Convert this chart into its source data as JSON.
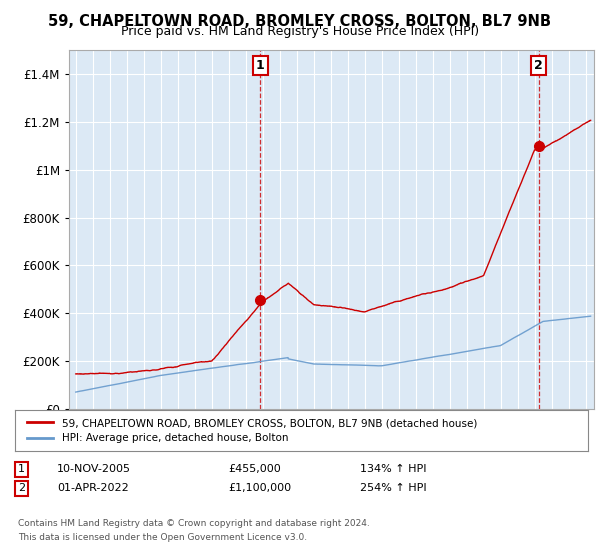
{
  "title": "59, CHAPELTOWN ROAD, BROMLEY CROSS, BOLTON, BL7 9NB",
  "subtitle": "Price paid vs. HM Land Registry's House Price Index (HPI)",
  "title_fontsize": 10.5,
  "subtitle_fontsize": 9,
  "ylabel_ticks": [
    "£0",
    "£200K",
    "£400K",
    "£600K",
    "£800K",
    "£1M",
    "£1.2M",
    "£1.4M"
  ],
  "ytick_vals": [
    0,
    200000,
    400000,
    600000,
    800000,
    1000000,
    1200000,
    1400000
  ],
  "ylim": [
    0,
    1500000
  ],
  "xlim_start": 1994.6,
  "xlim_end": 2025.5,
  "background_color": "#ffffff",
  "plot_bg_color": "#dce9f5",
  "grid_color": "#ffffff",
  "hpi_line_color": "#6699cc",
  "price_line_color": "#cc0000",
  "sale1_x": 2005.86,
  "sale1_y": 455000,
  "sale2_x": 2022.25,
  "sale2_y": 1100000,
  "annotation_box_color": "#cc0000",
  "legend_label1": "59, CHAPELTOWN ROAD, BROMLEY CROSS, BOLTON, BL7 9NB (detached house)",
  "legend_label2": "HPI: Average price, detached house, Bolton",
  "footnote3": "Contains HM Land Registry data © Crown copyright and database right 2024.",
  "footnote4": "This data is licensed under the Open Government Licence v3.0."
}
